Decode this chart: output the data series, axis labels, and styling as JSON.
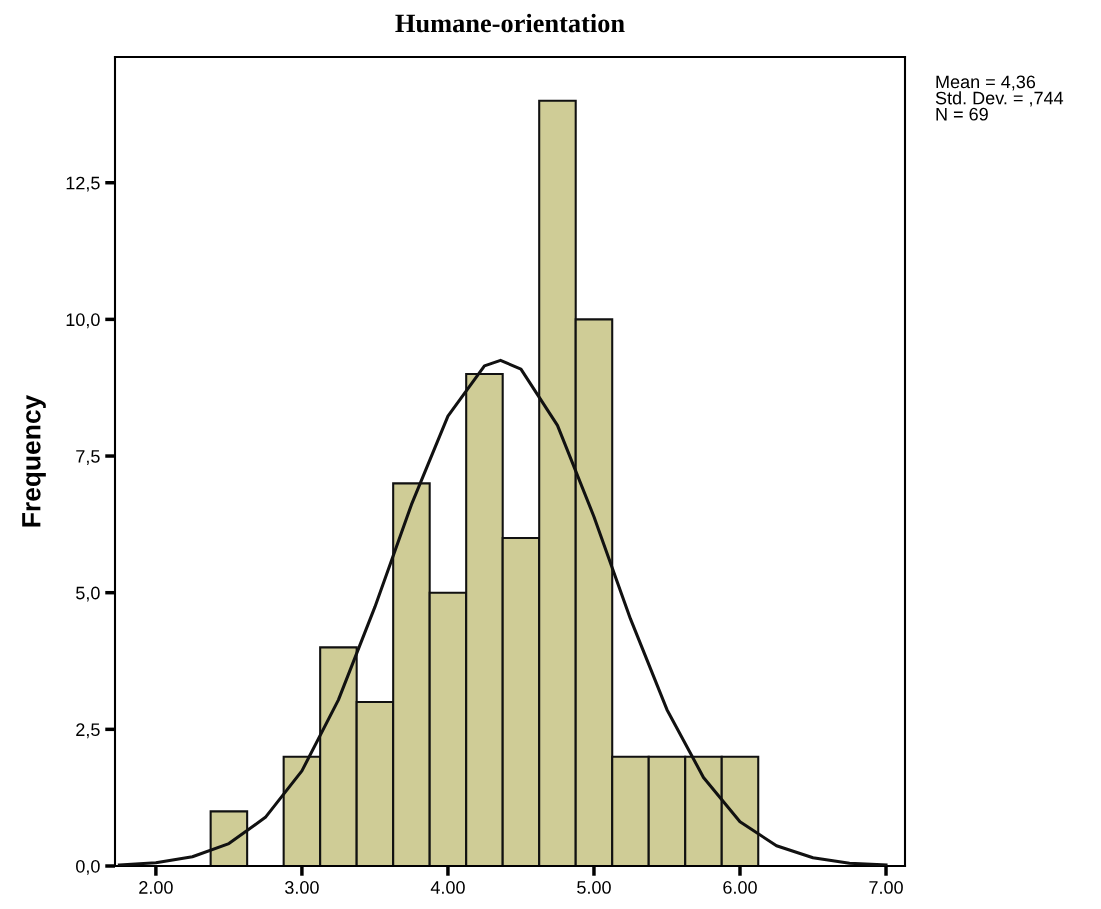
{
  "chart_data": {
    "type": "histogram",
    "title": "Humane-orientation",
    "ylabel": "Frequency",
    "series": [
      {
        "type": "histogram",
        "bins": [
          2.375,
          2.625,
          2.875,
          3.125,
          3.375,
          3.625,
          3.875,
          4.125,
          4.375,
          4.625,
          4.875,
          5.125,
          5.375,
          5.625,
          5.875,
          6.125
        ],
        "values": [
          1,
          0,
          2,
          4,
          3,
          7,
          5,
          9,
          6,
          14,
          10,
          2,
          2,
          2,
          2
        ],
        "color": "#cfcc96"
      },
      {
        "type": "line",
        "x": [
          1.75,
          2.0,
          2.25,
          2.5,
          2.75,
          3.0,
          3.25,
          3.5,
          3.75,
          4.0,
          4.25,
          4.36,
          4.5,
          4.75,
          5.0,
          5.25,
          5.5,
          5.75,
          6.0,
          6.25,
          6.5,
          6.75,
          7.0
        ],
        "values": [
          0.02,
          0.06,
          0.17,
          0.41,
          0.89,
          1.74,
          3.04,
          4.74,
          6.61,
          8.23,
          9.15,
          9.25,
          9.09,
          8.06,
          6.39,
          4.52,
          2.86,
          1.62,
          0.81,
          0.37,
          0.15,
          0.05,
          0.02
        ],
        "color": "#111111"
      }
    ],
    "xlim": [
      1.72,
      7.13
    ],
    "xticks": [
      {
        "value": 2,
        "label": "2.00"
      },
      {
        "value": 3,
        "label": "3.00"
      },
      {
        "value": 4,
        "label": "4.00"
      },
      {
        "value": 5,
        "label": "5.00"
      },
      {
        "value": 6,
        "label": "6.00"
      },
      {
        "value": 7,
        "label": "7.00"
      }
    ],
    "ylim": [
      0,
      14.8
    ],
    "yticks": [
      {
        "value": 0,
        "label": "0,0"
      },
      {
        "value": 2.5,
        "label": "2,5"
      },
      {
        "value": 5,
        "label": "5,0"
      },
      {
        "value": 7.5,
        "label": "7,5"
      },
      {
        "value": 10,
        "label": "10,0"
      },
      {
        "value": 12.5,
        "label": "12,5"
      }
    ],
    "annotations": [
      "Mean = 4,36",
      "Std. Dev. = ,744",
      "N = 69"
    ],
    "grid": false,
    "legend": false,
    "marker": "none",
    "line_style": "solid"
  }
}
